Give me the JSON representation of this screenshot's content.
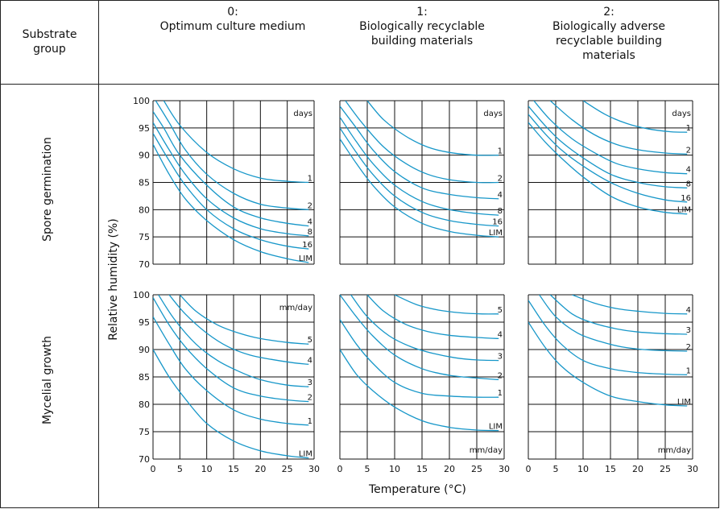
{
  "header": {
    "substrate_group": "Substrate\ngroup",
    "cols": [
      {
        "num": "0:",
        "name": "Optimum culture medium"
      },
      {
        "num": "1:",
        "name": "Biologically recyclable\nbuilding materials"
      },
      {
        "num": "2:",
        "name": "Biologically adverse\nrecyclable building\nmaterials"
      }
    ]
  },
  "rows": {
    "spore": "Spore germination",
    "mycel": "Mycelial growth"
  },
  "axes": {
    "ylabel": "Relative humidity (%)",
    "xlabel": "Temperature (°C)",
    "x_ticks": [
      "0",
      "5",
      "10",
      "15",
      "20",
      "25",
      "30"
    ],
    "y_ticks": [
      "70",
      "75",
      "80",
      "85",
      "90",
      "95",
      "100"
    ]
  },
  "chart_data": [
    {
      "type": "line",
      "panel": "spore-0",
      "unit_label": "days",
      "xlim": [
        0,
        30
      ],
      "ylim": [
        70,
        100
      ],
      "series": [
        {
          "name": "1",
          "x": [
            2,
            5,
            10,
            15,
            20,
            25,
            29
          ],
          "y": [
            100,
            95.5,
            90.5,
            87.5,
            85.8,
            85.2,
            85
          ]
        },
        {
          "name": "2",
          "x": [
            0.5,
            3,
            6,
            10,
            15,
            20,
            25,
            29
          ],
          "y": [
            100,
            96,
            91,
            86.5,
            83,
            81,
            80.3,
            80
          ]
        },
        {
          "name": "4",
          "x": [
            0,
            2,
            5,
            10,
            15,
            20,
            25,
            29
          ],
          "y": [
            98,
            95,
            90,
            84.5,
            80.5,
            78.5,
            77.5,
            77
          ]
        },
        {
          "name": "8",
          "x": [
            0,
            3,
            6,
            10,
            15,
            20,
            25,
            29
          ],
          "y": [
            96,
            91,
            86.5,
            82,
            78.5,
            76.5,
            75.6,
            75.2
          ]
        },
        {
          "name": "16",
          "x": [
            0,
            3,
            6,
            10,
            15,
            20,
            25,
            29
          ],
          "y": [
            94,
            89,
            84.5,
            80,
            76.5,
            74.5,
            73.3,
            72.8
          ]
        },
        {
          "name": "LIM",
          "x": [
            0,
            3,
            6,
            10,
            15,
            20,
            25,
            29
          ],
          "y": [
            92,
            86.5,
            82,
            78,
            74.5,
            72.3,
            71,
            70.3
          ]
        }
      ]
    },
    {
      "type": "line",
      "panel": "spore-1",
      "unit_label": "days",
      "xlim": [
        0,
        30
      ],
      "ylim": [
        70,
        100
      ],
      "series": [
        {
          "name": "1",
          "x": [
            5,
            8,
            12,
            16,
            20,
            25,
            29
          ],
          "y": [
            100,
            96.5,
            93.5,
            91.5,
            90.5,
            90,
            90
          ]
        },
        {
          "name": "2",
          "x": [
            1,
            4,
            8,
            12,
            16,
            20,
            25,
            29
          ],
          "y": [
            100,
            96,
            91.5,
            88.5,
            86.5,
            85.5,
            85,
            85
          ]
        },
        {
          "name": "4",
          "x": [
            0,
            3,
            6,
            10,
            15,
            20,
            25,
            29
          ],
          "y": [
            99,
            95,
            91,
            87,
            84,
            82.8,
            82.2,
            82
          ]
        },
        {
          "name": "8",
          "x": [
            0,
            3,
            6,
            10,
            15,
            20,
            25,
            29
          ],
          "y": [
            97,
            92.5,
            88.5,
            84.5,
            81.5,
            80,
            79.3,
            79
          ]
        },
        {
          "name": "16",
          "x": [
            0,
            3,
            6,
            10,
            15,
            20,
            25,
            29
          ],
          "y": [
            95,
            90.5,
            86.5,
            82.5,
            79.5,
            78,
            77.3,
            77
          ]
        },
        {
          "name": "LIM",
          "x": [
            0,
            3,
            6,
            10,
            15,
            20,
            25,
            29
          ],
          "y": [
            93,
            88.5,
            84.5,
            80.5,
            77.5,
            76,
            75.3,
            75
          ]
        }
      ]
    },
    {
      "type": "line",
      "panel": "spore-2",
      "unit_label": "days",
      "xlim": [
        0,
        30
      ],
      "ylim": [
        70,
        100
      ],
      "series": [
        {
          "name": "1",
          "x": [
            10,
            14,
            18,
            22,
            26,
            29
          ],
          "y": [
            100,
            97.5,
            95.8,
            94.8,
            94.3,
            94.2
          ]
        },
        {
          "name": "2",
          "x": [
            4,
            8,
            12,
            16,
            20,
            25,
            29
          ],
          "y": [
            100,
            96.5,
            93.8,
            92,
            91,
            90.4,
            90.2
          ]
        },
        {
          "name": "4",
          "x": [
            1,
            4,
            8,
            12,
            16,
            20,
            25,
            29
          ],
          "y": [
            100,
            96.5,
            93,
            90.5,
            88.5,
            87.5,
            86.8,
            86.6
          ]
        },
        {
          "name": "8",
          "x": [
            0,
            3,
            6,
            10,
            15,
            20,
            25,
            29
          ],
          "y": [
            99,
            95.5,
            92.5,
            89.5,
            86.5,
            85,
            84.2,
            84
          ]
        },
        {
          "name": "16",
          "x": [
            0,
            3,
            6,
            10,
            15,
            20,
            25,
            29
          ],
          "y": [
            97.5,
            94,
            91,
            88,
            85,
            83,
            81.8,
            81.4
          ]
        },
        {
          "name": "LIM",
          "x": [
            0,
            3,
            6,
            10,
            15,
            20,
            25,
            29
          ],
          "y": [
            96,
            92.5,
            89.5,
            86,
            82.5,
            80.5,
            79.5,
            79.2
          ]
        }
      ]
    },
    {
      "type": "line",
      "panel": "mycel-0",
      "unit_label": "mm/day",
      "xlim": [
        0,
        30
      ],
      "ylim": [
        70,
        100
      ],
      "series": [
        {
          "name": "5",
          "x": [
            5,
            8,
            12,
            16,
            20,
            25,
            29
          ],
          "y": [
            100,
            97,
            94.5,
            93,
            92,
            91.3,
            91
          ]
        },
        {
          "name": "4",
          "x": [
            3,
            6,
            10,
            14,
            18,
            22,
            26,
            29
          ],
          "y": [
            100,
            96.5,
            93,
            90.5,
            89,
            88.2,
            87.6,
            87.3
          ]
        },
        {
          "name": "3",
          "x": [
            1,
            4,
            8,
            12,
            16,
            20,
            25,
            29
          ],
          "y": [
            100,
            95.5,
            91,
            88,
            86,
            84.5,
            83.5,
            83.2
          ]
        },
        {
          "name": "2",
          "x": [
            0,
            3,
            6,
            10,
            15,
            20,
            25,
            29
          ],
          "y": [
            99.5,
            94.5,
            90.5,
            86.5,
            83,
            81.5,
            80.8,
            80.5
          ]
        },
        {
          "name": "1",
          "x": [
            0,
            3,
            6,
            10,
            15,
            20,
            25,
            29
          ],
          "y": [
            96,
            91,
            86.5,
            82.5,
            79,
            77.3,
            76.5,
            76.2
          ]
        },
        {
          "name": "LIM",
          "x": [
            0,
            3,
            6,
            10,
            15,
            20,
            25,
            29
          ],
          "y": [
            90,
            85,
            81,
            76.5,
            73.3,
            71.5,
            70.6,
            70.2
          ]
        }
      ]
    },
    {
      "type": "line",
      "panel": "mycel-1",
      "unit_label": "mm/day",
      "xlim": [
        0,
        30
      ],
      "ylim": [
        70,
        100
      ],
      "series": [
        {
          "name": "5",
          "x": [
            10,
            14,
            18,
            22,
            26,
            29
          ],
          "y": [
            100,
            98.2,
            97.2,
            96.7,
            96.5,
            96.5
          ]
        },
        {
          "name": "4",
          "x": [
            5,
            8,
            12,
            16,
            20,
            25,
            29
          ],
          "y": [
            100,
            97,
            94.6,
            93.3,
            92.6,
            92.2,
            92
          ]
        },
        {
          "name": "3",
          "x": [
            2,
            5,
            9,
            13,
            17,
            21,
            25,
            29
          ],
          "y": [
            100,
            96,
            92.5,
            90.5,
            89.3,
            88.5,
            88.1,
            88
          ]
        },
        {
          "name": "2",
          "x": [
            0,
            3,
            6,
            10,
            15,
            20,
            25,
            29
          ],
          "y": [
            100,
            96,
            92.5,
            89,
            86.5,
            85.3,
            84.8,
            84.5
          ]
        },
        {
          "name": "1",
          "x": [
            0,
            3,
            6,
            10,
            15,
            20,
            25,
            29
          ],
          "y": [
            95.5,
            91,
            87.5,
            84,
            82,
            81.5,
            81.3,
            81.3
          ]
        },
        {
          "name": "LIM",
          "x": [
            0,
            3,
            6,
            10,
            15,
            20,
            25,
            29
          ],
          "y": [
            90,
            85.5,
            82.5,
            79.5,
            77,
            75.8,
            75.3,
            75.2
          ]
        }
      ]
    },
    {
      "type": "line",
      "panel": "mycel-2",
      "unit_label": "mm/day",
      "xlim": [
        0,
        30
      ],
      "ylim": [
        70,
        100
      ],
      "series": [
        {
          "name": "4",
          "x": [
            8,
            12,
            16,
            20,
            25,
            29
          ],
          "y": [
            100,
            98.5,
            97.5,
            97,
            96.6,
            96.5
          ]
        },
        {
          "name": "3",
          "x": [
            4,
            8,
            12,
            16,
            20,
            25,
            29
          ],
          "y": [
            100,
            96.5,
            94.8,
            93.8,
            93.2,
            92.9,
            92.8
          ]
        },
        {
          "name": "2",
          "x": [
            2,
            5,
            9,
            13,
            17,
            21,
            25,
            29
          ],
          "y": [
            100,
            96,
            93,
            91.5,
            90.5,
            90,
            89.8,
            89.7
          ]
        },
        {
          "name": "1",
          "x": [
            0,
            3,
            6,
            10,
            15,
            20,
            25,
            29
          ],
          "y": [
            99,
            94.5,
            91,
            88,
            86.5,
            85.8,
            85.5,
            85.4
          ]
        },
        {
          "name": "LIM",
          "x": [
            0,
            3,
            6,
            10,
            15,
            20,
            25,
            29
          ],
          "y": [
            95,
            90.5,
            87,
            84,
            81.5,
            80.5,
            79.9,
            79.7
          ]
        }
      ]
    }
  ]
}
